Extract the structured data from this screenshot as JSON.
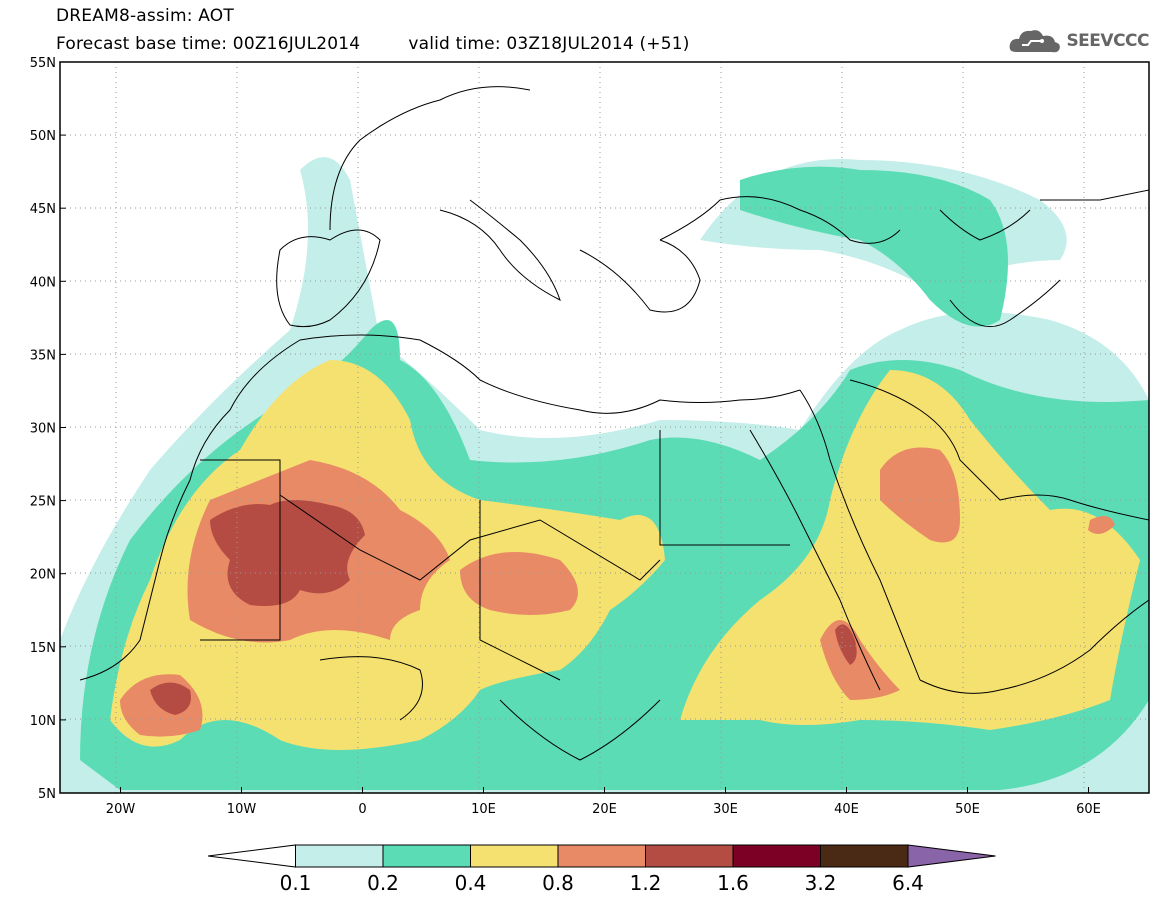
{
  "header": {
    "title": "DREAM8-assim: AOT",
    "base_time": "Forecast base time: 00Z16JUL2014",
    "valid_time": "valid time: 03Z18JUL2014 (+51)"
  },
  "logo": {
    "text": "SEEVCCC",
    "icon": "cloud-icon"
  },
  "map": {
    "lon_range": [
      -25,
      65
    ],
    "lat_range": [
      5,
      55
    ],
    "lat_ticks": [
      "55N",
      "50N",
      "45N",
      "40N",
      "35N",
      "30N",
      "25N",
      "20N",
      "15N",
      "10N",
      "5N"
    ],
    "lon_ticks": [
      "20W",
      "10W",
      "0",
      "10E",
      "20E",
      "30E",
      "40E",
      "50E",
      "60E"
    ],
    "grid": "dotted"
  },
  "legend": {
    "levels": [
      "0.1",
      "0.2",
      "0.4",
      "0.8",
      "1.2",
      "1.6",
      "3.2",
      "6.4"
    ],
    "colors": [
      "#ffffff",
      "#c4eee9",
      "#5cdcb5",
      "#f5e170",
      "#e98a67",
      "#b44c43",
      "#7c0026",
      "#4a2a15",
      "#8a64a8"
    ]
  }
}
